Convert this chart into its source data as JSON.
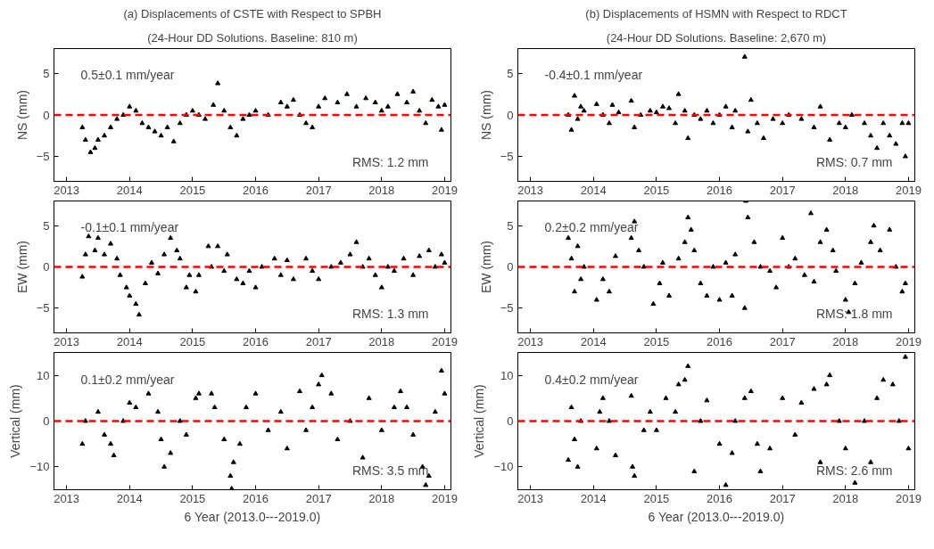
{
  "chart_data": [
    {
      "type": "scatter",
      "title": "(a) Displacements of CSTE with Respect to SPBH",
      "subtitle": "(24-Hour DD Solutions. Baseline: 810 m)",
      "ylabel": "NS (mm)",
      "marker": "triangle",
      "grid": false,
      "legend": false,
      "xlim": [
        2012.8,
        2019.1
      ],
      "xticks": [
        2013,
        2014,
        2015,
        2016,
        2017,
        2018,
        2019
      ],
      "ylim": [
        -8,
        8
      ],
      "yticks": [
        -5,
        0,
        5
      ],
      "series": [
        {
          "color": "#000000",
          "x": [
            2013.25,
            2013.3,
            2013.38,
            2013.45,
            2013.5,
            2013.6,
            2013.7,
            2013.8,
            2013.9,
            2014.0,
            2014.1,
            2014.2,
            2014.3,
            2014.4,
            2014.5,
            2014.6,
            2014.7,
            2014.8,
            2014.9,
            2015.0,
            2015.1,
            2015.2,
            2015.33,
            2015.4,
            2015.5,
            2015.6,
            2015.7,
            2015.8,
            2015.9,
            2016.0,
            2016.2,
            2016.4,
            2016.5,
            2016.6,
            2016.7,
            2016.8,
            2016.9,
            2017.0,
            2017.1,
            2017.3,
            2017.45,
            2017.6,
            2017.75,
            2017.9,
            2018.0,
            2018.1,
            2018.25,
            2018.4,
            2018.5,
            2018.6,
            2018.7,
            2018.8,
            2018.9,
            2018.95,
            2019.0
          ],
          "values": [
            -1.5,
            -3,
            -4.5,
            -4,
            -3,
            -2.5,
            -1.5,
            -0.5,
            0,
            1,
            0.5,
            -1,
            -1.5,
            -2,
            -2.5,
            -1.5,
            -3.2,
            -1,
            0,
            0.5,
            0,
            -0.5,
            1.2,
            3.8,
            0.5,
            -1.5,
            -2.5,
            -0.5,
            0,
            0.5,
            0,
            1.5,
            1,
            1.8,
            0,
            -1,
            -1.5,
            1,
            2,
            1.5,
            2.5,
            1,
            2,
            1.5,
            0.5,
            1,
            2.5,
            1.5,
            2.8,
            0.5,
            -1,
            1.8,
            1,
            -1.8,
            1.2
          ]
        }
      ],
      "ref_lines": [
        {
          "axis": "y",
          "value": 0,
          "color": "#ff0000",
          "line_style": "dashed"
        }
      ],
      "annotations": [
        "0.5±0.1 mm/year",
        "RMS: 1.2 mm"
      ]
    },
    {
      "type": "scatter",
      "title": "(b) Displacements of HSMN with Respect to RDCT",
      "subtitle": "(24-Hour DD Solutions. Baseline: 2,670 m)",
      "ylabel": "NS (mm)",
      "marker": "triangle",
      "grid": false,
      "legend": false,
      "xlim": [
        2012.8,
        2019.1
      ],
      "xticks": [
        2013,
        2014,
        2015,
        2016,
        2017,
        2018,
        2019
      ],
      "ylim": [
        -8,
        8
      ],
      "yticks": [
        -5,
        0,
        5
      ],
      "series": [
        {
          "color": "#000000",
          "x": [
            2013.6,
            2013.65,
            2013.7,
            2013.75,
            2013.8,
            2013.85,
            2014.05,
            2014.15,
            2014.25,
            2014.3,
            2014.4,
            2014.6,
            2014.65,
            2014.75,
            2014.9,
            2015.0,
            2015.1,
            2015.2,
            2015.3,
            2015.35,
            2015.45,
            2015.5,
            2015.6,
            2015.7,
            2015.8,
            2015.9,
            2016.0,
            2016.1,
            2016.2,
            2016.25,
            2016.4,
            2016.45,
            2016.5,
            2016.6,
            2016.7,
            2016.85,
            2017.0,
            2017.1,
            2017.3,
            2017.5,
            2017.6,
            2017.75,
            2017.9,
            2018.0,
            2018.1,
            2018.3,
            2018.4,
            2018.5,
            2018.6,
            2018.7,
            2018.8,
            2018.9,
            2018.95,
            2019.0
          ],
          "values": [
            0,
            -1.8,
            2.3,
            -0.5,
            1,
            0.5,
            1.3,
            0,
            -1,
            1.2,
            0.3,
            1.7,
            -1.5,
            0,
            0.5,
            0.3,
            1,
            0.8,
            -1,
            2.5,
            0.5,
            -2.8,
            0,
            -0.5,
            0.5,
            -1,
            0,
            1,
            -1.5,
            0.5,
            7,
            -2,
            1.8,
            -1,
            -2.8,
            -0.5,
            -1,
            0,
            -0.5,
            -1.5,
            1,
            -3,
            -1,
            -1.5,
            0,
            -1,
            -2.5,
            -4,
            -1,
            -2.5,
            -3.5,
            -1,
            -5,
            -1
          ]
        }
      ],
      "ref_lines": [
        {
          "axis": "y",
          "value": 0,
          "color": "#ff0000",
          "line_style": "dashed"
        }
      ],
      "annotations": [
        "-0.4±0.1 mm/year",
        "RMS: 0.7 mm"
      ]
    },
    {
      "type": "scatter",
      "ylabel": "EW (mm)",
      "marker": "triangle",
      "grid": false,
      "legend": false,
      "xlim": [
        2012.8,
        2019.1
      ],
      "xticks": [
        2013,
        2014,
        2015,
        2016,
        2017,
        2018,
        2019
      ],
      "ylim": [
        -8,
        8
      ],
      "yticks": [
        -5,
        0,
        5
      ],
      "series": [
        {
          "color": "#000000",
          "x": [
            2013.25,
            2013.3,
            2013.35,
            2013.45,
            2013.5,
            2013.6,
            2013.7,
            2013.8,
            2013.85,
            2013.95,
            2014.0,
            2014.1,
            2014.15,
            2014.25,
            2014.35,
            2014.45,
            2014.55,
            2014.65,
            2014.75,
            2014.8,
            2014.9,
            2014.95,
            2015.05,
            2015.1,
            2015.25,
            2015.3,
            2015.4,
            2015.5,
            2015.55,
            2015.7,
            2015.8,
            2015.9,
            2016.0,
            2016.1,
            2016.3,
            2016.4,
            2016.5,
            2016.6,
            2016.8,
            2016.9,
            2017.0,
            2017.2,
            2017.35,
            2017.5,
            2017.6,
            2017.7,
            2017.8,
            2017.9,
            2018.0,
            2018.1,
            2018.2,
            2018.35,
            2018.5,
            2018.6,
            2018.75,
            2018.85,
            2018.95,
            2019.0
          ],
          "values": [
            -1.2,
            1.5,
            3.7,
            2,
            3.5,
            1.5,
            2.8,
            1,
            -1,
            -2.5,
            -3.5,
            -4.5,
            -5.8,
            -2,
            0.5,
            -0.8,
            1.5,
            3.5,
            2,
            1,
            -2.5,
            -1,
            -3,
            -1,
            2.5,
            0,
            2.5,
            -0.5,
            1.5,
            -1.5,
            -2,
            -0.5,
            -2.5,
            0,
            1,
            -1,
            0.8,
            -1.5,
            1,
            -0.5,
            -1.5,
            0,
            0.5,
            1.5,
            3,
            0,
            1,
            -1,
            -2.5,
            0,
            -0.5,
            1,
            -1,
            1.3,
            2,
            0,
            1.5,
            0.5
          ]
        }
      ],
      "ref_lines": [
        {
          "axis": "y",
          "value": 0,
          "color": "#ff0000",
          "line_style": "dashed"
        }
      ],
      "annotations": [
        "-0.1±0.1 mm/year",
        "RMS: 1.3 mm"
      ]
    },
    {
      "type": "scatter",
      "ylabel": "EW (mm)",
      "marker": "triangle",
      "grid": false,
      "legend": false,
      "xlim": [
        2012.8,
        2019.1
      ],
      "xticks": [
        2013,
        2014,
        2015,
        2016,
        2017,
        2018,
        2019
      ],
      "ylim": [
        -8,
        8
      ],
      "yticks": [
        -5,
        0,
        5
      ],
      "series": [
        {
          "color": "#000000",
          "x": [
            2013.6,
            2013.65,
            2013.7,
            2013.75,
            2013.8,
            2013.85,
            2014.05,
            2014.15,
            2014.25,
            2014.35,
            2014.6,
            2014.65,
            2014.72,
            2014.8,
            2014.95,
            2015.05,
            2015.1,
            2015.2,
            2015.35,
            2015.45,
            2015.5,
            2015.55,
            2015.6,
            2015.7,
            2015.8,
            2015.9,
            2016.0,
            2016.1,
            2016.2,
            2016.25,
            2016.4,
            2016.42,
            2016.45,
            2016.55,
            2016.65,
            2016.8,
            2016.9,
            2017.0,
            2017.1,
            2017.2,
            2017.35,
            2017.45,
            2017.5,
            2017.6,
            2017.7,
            2017.8,
            2017.85,
            2018.0,
            2018.05,
            2018.15,
            2018.25,
            2018.4,
            2018.45,
            2018.55,
            2018.7,
            2018.8,
            2018.9,
            2018.95
          ],
          "values": [
            3.5,
            1,
            -3,
            2.5,
            -1.5,
            0,
            -4,
            -1.5,
            -3,
            1.3,
            3.5,
            5.5,
            2,
            0,
            -4.5,
            -2,
            0.5,
            -3.5,
            1,
            3,
            6,
            4.5,
            2,
            -2,
            -3.5,
            0,
            -4,
            0.5,
            -3.5,
            1.5,
            -5,
            8,
            6,
            3,
            0,
            -0.5,
            -2.5,
            3.5,
            0,
            1,
            -1,
            6.5,
            -1.8,
            3,
            4.5,
            2,
            -0.5,
            -4,
            -5.5,
            -2,
            0.5,
            3,
            5,
            2,
            4.5,
            0,
            -3,
            -2
          ]
        }
      ],
      "ref_lines": [
        {
          "axis": "y",
          "value": 0,
          "color": "#ff0000",
          "line_style": "dashed"
        }
      ],
      "annotations": [
        "0.2±0.2 mm/year",
        "RMS: 1.8 mm"
      ]
    },
    {
      "type": "scatter",
      "xlabel": "6 Year (2013.0---2019.0)",
      "ylabel": "Vertical (mm)",
      "marker": "triangle",
      "grid": false,
      "legend": false,
      "xlim": [
        2012.8,
        2019.1
      ],
      "xticks": [
        2013,
        2014,
        2015,
        2016,
        2017,
        2018,
        2019
      ],
      "ylim": [
        -15,
        15
      ],
      "yticks": [
        -10,
        0,
        10
      ],
      "series": [
        {
          "color": "#000000",
          "x": [
            2013.25,
            2013.3,
            2013.5,
            2013.6,
            2013.7,
            2013.75,
            2013.9,
            2014.0,
            2014.1,
            2014.3,
            2014.45,
            2014.5,
            2014.55,
            2014.65,
            2014.8,
            2014.9,
            2015.05,
            2015.1,
            2015.3,
            2015.35,
            2015.5,
            2015.6,
            2015.62,
            2015.65,
            2015.75,
            2015.85,
            2016.0,
            2016.2,
            2016.4,
            2016.5,
            2016.7,
            2016.8,
            2016.9,
            2017.0,
            2017.05,
            2017.2,
            2017.3,
            2017.5,
            2017.7,
            2017.8,
            2018.0,
            2018.2,
            2018.3,
            2018.4,
            2018.5,
            2018.65,
            2018.7,
            2018.75,
            2018.85,
            2018.95,
            2019.0
          ],
          "values": [
            -5,
            0,
            2,
            -3,
            -5,
            -7.5,
            0,
            4,
            3,
            6,
            2,
            -4,
            -10,
            -7,
            0,
            -3,
            5,
            6,
            6,
            3,
            -4,
            -12,
            -14.8,
            -9,
            -5,
            3,
            6,
            -2,
            2,
            -6,
            6.5,
            -2,
            3,
            8,
            10,
            6,
            -4,
            0,
            -8,
            5,
            -2,
            3,
            6.5,
            3,
            -3,
            -10,
            -14,
            -12,
            2,
            11,
            6
          ]
        }
      ],
      "ref_lines": [
        {
          "axis": "y",
          "value": 0,
          "color": "#ff0000",
          "line_style": "dashed"
        }
      ],
      "annotations": [
        "0.1±0.2 mm/year",
        "RMS: 3.5 mm"
      ]
    },
    {
      "type": "scatter",
      "xlabel": "6 Year (2013.0---2019.0)",
      "ylabel": "Vertical (mm)",
      "marker": "triangle",
      "grid": false,
      "legend": false,
      "xlim": [
        2012.8,
        2019.1
      ],
      "xticks": [
        2013,
        2014,
        2015,
        2016,
        2017,
        2018,
        2019
      ],
      "ylim": [
        -15,
        15
      ],
      "yticks": [
        -10,
        0,
        10
      ],
      "series": [
        {
          "color": "#000000",
          "x": [
            2013.6,
            2013.65,
            2013.7,
            2013.75,
            2013.8,
            2014.05,
            2014.1,
            2014.15,
            2014.25,
            2014.35,
            2014.6,
            2014.62,
            2014.65,
            2014.8,
            2014.9,
            2015.0,
            2015.15,
            2015.3,
            2015.35,
            2015.45,
            2015.5,
            2015.6,
            2015.7,
            2015.8,
            2016.0,
            2016.1,
            2016.2,
            2016.25,
            2016.4,
            2016.5,
            2016.6,
            2016.65,
            2016.8,
            2017.0,
            2017.2,
            2017.3,
            2017.5,
            2017.6,
            2017.7,
            2017.75,
            2017.9,
            2018.0,
            2018.15,
            2018.3,
            2018.4,
            2018.5,
            2018.6,
            2018.75,
            2018.85,
            2018.95,
            2019.0
          ],
          "values": [
            -8.5,
            3,
            -4,
            -10,
            0,
            -6,
            2,
            5,
            0,
            -7.5,
            5.5,
            -10,
            -12,
            -2,
            2,
            -2,
            5,
            2,
            8,
            9,
            12,
            -11,
            0,
            4.5,
            -5,
            -14,
            -7,
            0,
            5,
            6.5,
            -5,
            -11,
            -6,
            5,
            -3,
            4,
            7,
            -9,
            8,
            10,
            0,
            -6,
            -13.5,
            0,
            -9,
            5,
            9,
            8,
            0,
            14,
            -6
          ]
        }
      ],
      "ref_lines": [
        {
          "axis": "y",
          "value": 0,
          "color": "#ff0000",
          "line_style": "dashed"
        }
      ],
      "annotations": [
        "0.4±0.2 mm/year",
        "RMS: 2.6 mm"
      ]
    }
  ]
}
